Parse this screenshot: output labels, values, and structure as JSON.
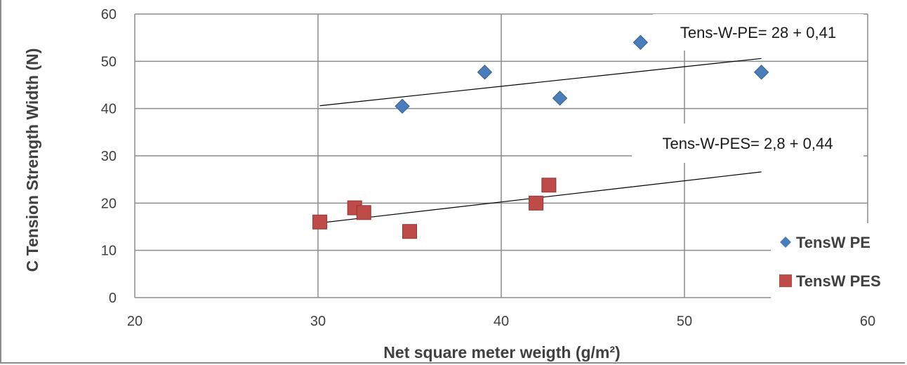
{
  "chart_data": {
    "type": "scatter",
    "xlabel": "Net square meter weigth (g/m²)",
    "ylabel": "C  Tension Strength Width (N)",
    "xlim": [
      20,
      60
    ],
    "ylim": [
      0,
      60
    ],
    "x_ticks": [
      "20",
      "30",
      "40",
      "50",
      "60"
    ],
    "y_ticks": [
      "0",
      "10",
      "20",
      "30",
      "40",
      "50",
      "60"
    ],
    "grid": true,
    "legend_position": "bottom-right",
    "series": [
      {
        "name": "TensW PE",
        "marker": "diamond",
        "color": "#4a7ebb",
        "points": [
          [
            34.6,
            40.5
          ],
          [
            39.1,
            47.7
          ],
          [
            43.2,
            42.2
          ],
          [
            47.6,
            54.0
          ],
          [
            54.2,
            47.7
          ]
        ],
        "trendline": {
          "x": [
            30.1,
            54.2
          ],
          "y": [
            40.6,
            50.6
          ],
          "label": "Tens-W-PE= 28 + 0,41"
        }
      },
      {
        "name": "TensW PES",
        "marker": "square",
        "color": "#be4b48",
        "points": [
          [
            30.1,
            16.0
          ],
          [
            32.0,
            19.0
          ],
          [
            32.5,
            18.0
          ],
          [
            35.0,
            14.0
          ],
          [
            41.9,
            20.0
          ],
          [
            42.6,
            23.8
          ]
        ],
        "trendline": {
          "x": [
            30.1,
            54.2
          ],
          "y": [
            15.8,
            26.6
          ],
          "label": "Tens-W-PES= 2,8 + 0,44"
        }
      }
    ]
  }
}
